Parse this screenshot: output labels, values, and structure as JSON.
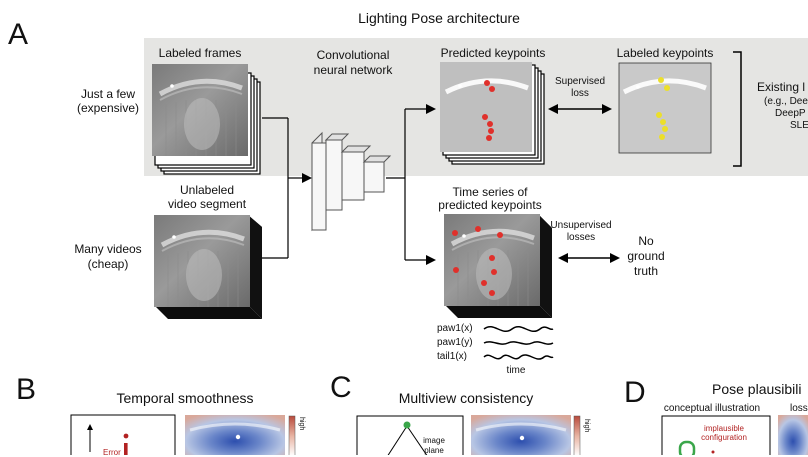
{
  "figure": {
    "title": "Lighting Pose architecture",
    "panels": {
      "a": "A",
      "b": "B",
      "c": "C",
      "d": "D"
    },
    "row_labels": {
      "few": [
        "Just a few",
        "(expensive)"
      ],
      "many": [
        "Many videos",
        "(cheap)"
      ]
    },
    "blocks": {
      "labeled_frames": "Labeled frames",
      "unlabeled_video": [
        "Unlabeled",
        "video segment"
      ],
      "cnn": [
        "Convolutional",
        "neural network"
      ],
      "predicted_keypoints": "Predicted keypoints",
      "labeled_keypoints": "Labeled keypoints",
      "supervised_loss": [
        "Supervised",
        "loss"
      ],
      "time_series": [
        "Time series of",
        "predicted keypoints"
      ],
      "unsupervised_losses": [
        "Unsupervised",
        "losses"
      ],
      "no_ground_truth": [
        "No",
        "ground",
        "truth"
      ],
      "existing": [
        "Existing l",
        "(e.g., Dee",
        "DeepP",
        "SLE"
      ]
    },
    "traces": {
      "labels": [
        "paw1(x)",
        "paw1(y)",
        "tail1(x)"
      ],
      "axis": "time"
    },
    "bottom": {
      "b_title": "Temporal smoothness",
      "b_error": "Error",
      "c_title": "Multiview consistency",
      "c_image_plane": [
        "image",
        "plane"
      ],
      "d_title": "Pose plausibili",
      "d_conceptual": "conceptual illustration",
      "d_loss": "loss",
      "d_implausible": [
        "implausible",
        "configuration"
      ],
      "colorbar_high": "high"
    },
    "colors": {
      "keypoint_red": "#e0302b",
      "keypoint_yellow": "#ecdf2a",
      "implausible_red": "#b22222",
      "gray_background": "#e5e5e3",
      "good_green": "#3aa64a"
    }
  }
}
